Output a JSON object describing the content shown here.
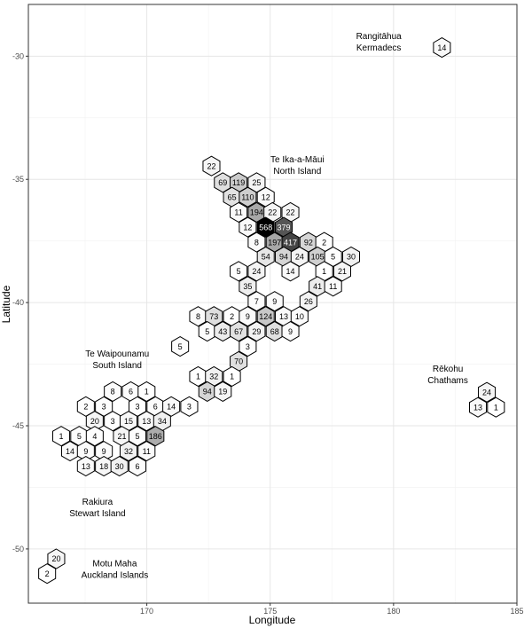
{
  "chart_data": {
    "type": "hexbin-map",
    "title": "",
    "xlabel": "Longitude",
    "ylabel": "Latitude",
    "xlim": [
      165.2,
      185
    ],
    "ylim": [
      -52.2,
      -27.9
    ],
    "x_ticks": [
      170,
      175,
      180,
      185
    ],
    "y_ticks": [
      -30,
      -35,
      -40,
      -45,
      -50
    ],
    "grid": true,
    "fill_scale": {
      "low": "#ffffff",
      "high": "#000000",
      "min": 0,
      "max": 568
    },
    "region_labels": [
      {
        "lines": [
          "Rangitāhua",
          "Kermadecs"
        ],
        "lon": 179.4,
        "lat": -29.3
      },
      {
        "lines": [
          "Te Ika-a-Māui",
          "North Island"
        ],
        "lon": 176.1,
        "lat": -34.3
      },
      {
        "lines": [
          "Te Waipounamu",
          "South Island"
        ],
        "lon": 168.8,
        "lat": -42.2
      },
      {
        "lines": [
          "Rēkohu",
          "Chathams"
        ],
        "lon": 182.2,
        "lat": -42.8
      },
      {
        "lines": [
          "Rakiura",
          "Stewart Island"
        ],
        "lon": 168.0,
        "lat": -48.2
      },
      {
        "lines": [
          "Motu Maha",
          "Auckland Islands"
        ],
        "lon": 168.7,
        "lat": -50.7
      }
    ],
    "hexes": [
      {
        "lon": 181.96,
        "lat": -29.65,
        "value": 14
      },
      {
        "lon": 172.62,
        "lat": -34.46,
        "value": 22
      },
      {
        "lon": 173.08,
        "lat": -35.13,
        "value": 69
      },
      {
        "lon": 173.72,
        "lat": -35.13,
        "value": 119
      },
      {
        "lon": 174.45,
        "lat": -35.13,
        "value": 25
      },
      {
        "lon": 173.45,
        "lat": -35.72,
        "value": 65
      },
      {
        "lon": 174.09,
        "lat": -35.72,
        "value": 110
      },
      {
        "lon": 174.82,
        "lat": -35.72,
        "value": 12
      },
      {
        "lon": 173.72,
        "lat": -36.34,
        "value": 11
      },
      {
        "lon": 174.45,
        "lat": -36.34,
        "value": 194
      },
      {
        "lon": 175.09,
        "lat": -36.34,
        "value": 22
      },
      {
        "lon": 175.82,
        "lat": -36.34,
        "value": 22
      },
      {
        "lon": 174.09,
        "lat": -36.94,
        "value": 12
      },
      {
        "lon": 174.82,
        "lat": -36.94,
        "value": 568
      },
      {
        "lon": 175.55,
        "lat": -36.94,
        "value": 379
      },
      {
        "lon": 174.45,
        "lat": -37.55,
        "value": 8
      },
      {
        "lon": 175.18,
        "lat": -37.55,
        "value": 197
      },
      {
        "lon": 175.82,
        "lat": -37.55,
        "value": 417
      },
      {
        "lon": 176.55,
        "lat": -37.55,
        "value": 92
      },
      {
        "lon": 177.19,
        "lat": -37.55,
        "value": 2
      },
      {
        "lon": 174.82,
        "lat": -38.14,
        "value": 54
      },
      {
        "lon": 175.55,
        "lat": -38.14,
        "value": 94
      },
      {
        "lon": 176.19,
        "lat": -38.14,
        "value": 24
      },
      {
        "lon": 176.92,
        "lat": -38.14,
        "value": 105
      },
      {
        "lon": 177.55,
        "lat": -38.14,
        "value": 5
      },
      {
        "lon": 178.28,
        "lat": -38.14,
        "value": 30
      },
      {
        "lon": 173.72,
        "lat": -38.73,
        "value": 5
      },
      {
        "lon": 174.45,
        "lat": -38.73,
        "value": 24
      },
      {
        "lon": 175.82,
        "lat": -38.73,
        "value": 14
      },
      {
        "lon": 177.19,
        "lat": -38.73,
        "value": 1
      },
      {
        "lon": 177.92,
        "lat": -38.73,
        "value": 21
      },
      {
        "lon": 174.09,
        "lat": -39.34,
        "value": 35
      },
      {
        "lon": 176.92,
        "lat": -39.34,
        "value": 41
      },
      {
        "lon": 177.55,
        "lat": -39.34,
        "value": 11
      },
      {
        "lon": 174.45,
        "lat": -39.95,
        "value": 7
      },
      {
        "lon": 175.18,
        "lat": -39.95,
        "value": 9
      },
      {
        "lon": 176.55,
        "lat": -39.95,
        "value": 26
      },
      {
        "lon": 172.08,
        "lat": -40.56,
        "value": 8
      },
      {
        "lon": 172.72,
        "lat": -40.56,
        "value": 73
      },
      {
        "lon": 173.45,
        "lat": -40.56,
        "value": 2
      },
      {
        "lon": 174.09,
        "lat": -40.56,
        "value": 9
      },
      {
        "lon": 174.82,
        "lat": -40.56,
        "value": 124
      },
      {
        "lon": 175.55,
        "lat": -40.56,
        "value": 13
      },
      {
        "lon": 176.19,
        "lat": -40.56,
        "value": 10
      },
      {
        "lon": 172.45,
        "lat": -41.17,
        "value": 5
      },
      {
        "lon": 173.08,
        "lat": -41.17,
        "value": 43
      },
      {
        "lon": 173.72,
        "lat": -41.17,
        "value": 67
      },
      {
        "lon": 174.45,
        "lat": -41.17,
        "value": 29
      },
      {
        "lon": 175.18,
        "lat": -41.17,
        "value": 68
      },
      {
        "lon": 175.82,
        "lat": -41.17,
        "value": 9
      },
      {
        "lon": 171.35,
        "lat": -41.78,
        "value": 5
      },
      {
        "lon": 174.09,
        "lat": -41.78,
        "value": 3
      },
      {
        "lon": 173.72,
        "lat": -42.39,
        "value": 70
      },
      {
        "lon": 172.08,
        "lat": -43.0,
        "value": 1
      },
      {
        "lon": 172.72,
        "lat": -43.0,
        "value": 32
      },
      {
        "lon": 173.45,
        "lat": -43.0,
        "value": 1
      },
      {
        "lon": 172.45,
        "lat": -43.61,
        "value": 94
      },
      {
        "lon": 173.08,
        "lat": -43.61,
        "value": 19
      },
      {
        "lon": 168.62,
        "lat": -43.61,
        "value": 8
      },
      {
        "lon": 169.35,
        "lat": -43.61,
        "value": 6
      },
      {
        "lon": 169.99,
        "lat": -43.61,
        "value": 1
      },
      {
        "lon": 167.53,
        "lat": -44.22,
        "value": 2
      },
      {
        "lon": 168.26,
        "lat": -44.22,
        "value": 3
      },
      {
        "lon": 169.62,
        "lat": -44.22,
        "value": 3
      },
      {
        "lon": 170.35,
        "lat": -44.22,
        "value": 6
      },
      {
        "lon": 170.99,
        "lat": -44.22,
        "value": 14
      },
      {
        "lon": 171.72,
        "lat": -44.22,
        "value": 3
      },
      {
        "lon": 167.89,
        "lat": -44.81,
        "value": 20
      },
      {
        "lon": 168.62,
        "lat": -44.81,
        "value": 3
      },
      {
        "lon": 169.26,
        "lat": -44.81,
        "value": 15
      },
      {
        "lon": 169.99,
        "lat": -44.81,
        "value": 13
      },
      {
        "lon": 170.62,
        "lat": -44.81,
        "value": 34
      },
      {
        "lon": 166.53,
        "lat": -45.42,
        "value": 1
      },
      {
        "lon": 167.26,
        "lat": -45.42,
        "value": 5
      },
      {
        "lon": 167.89,
        "lat": -45.42,
        "value": 4
      },
      {
        "lon": 168.99,
        "lat": -45.42,
        "value": 21
      },
      {
        "lon": 169.62,
        "lat": -45.42,
        "value": 5
      },
      {
        "lon": 170.35,
        "lat": -45.42,
        "value": 186
      },
      {
        "lon": 166.89,
        "lat": -46.03,
        "value": 14
      },
      {
        "lon": 167.53,
        "lat": -46.03,
        "value": 9
      },
      {
        "lon": 168.26,
        "lat": -46.03,
        "value": 9
      },
      {
        "lon": 169.26,
        "lat": -46.03,
        "value": 32
      },
      {
        "lon": 169.99,
        "lat": -46.03,
        "value": 11
      },
      {
        "lon": 167.53,
        "lat": -46.64,
        "value": 13
      },
      {
        "lon": 168.26,
        "lat": -46.64,
        "value": 18
      },
      {
        "lon": 168.89,
        "lat": -46.64,
        "value": 30
      },
      {
        "lon": 169.62,
        "lat": -46.64,
        "value": 6
      },
      {
        "lon": 183.78,
        "lat": -43.64,
        "value": 24
      },
      {
        "lon": 183.42,
        "lat": -44.25,
        "value": 13
      },
      {
        "lon": 184.15,
        "lat": -44.25,
        "value": 1
      },
      {
        "lon": 166.33,
        "lat": -50.4,
        "value": 20
      },
      {
        "lon": 165.96,
        "lat": -51.0,
        "value": 2
      }
    ]
  }
}
